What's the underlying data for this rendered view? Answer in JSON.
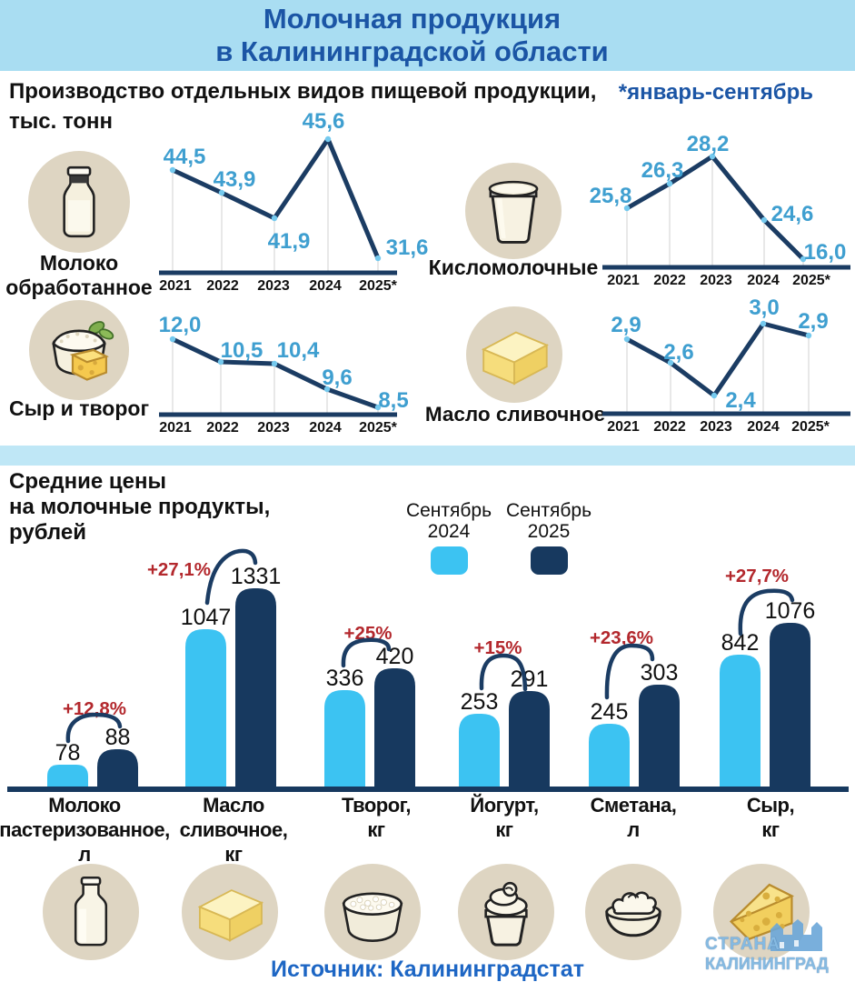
{
  "header": {
    "title": "Молочная продукция\nв Калининградской области"
  },
  "production": {
    "title": "Производство отдельных видов пищевой продукции,\nтыс. тонн",
    "note": "*январь-сентябрь"
  },
  "prices": {
    "title": "Средние цены\nна молочные продукты,\nрублей",
    "legend": [
      {
        "label": "Сентябрь\n2024",
        "color": "#3cc3f2"
      },
      {
        "label": "Сентябрь\n2025",
        "color": "#17395f"
      }
    ]
  },
  "source": "Источник: Калининградстат",
  "watermark": {
    "line1": "СТРАНА",
    "line2": "КАЛИНИНГРАД"
  },
  "colors": {
    "header_bg": "#a9ddf2",
    "header_text": "#1b55a5",
    "line": "#1b3c63",
    "marker": "#74c9ee",
    "value_label": "#3f9fd0",
    "bar_2024": "#3cc3f2",
    "bar_2025": "#17395f",
    "pct_red": "#b3282d",
    "icon_bg": "#ded5c2",
    "source_text": "#1d66c4"
  },
  "chart_data": [
    {
      "type": "line",
      "title": "Молоко обработанное",
      "icon": "milk-bottle-icon",
      "x": [
        "2021",
        "2022",
        "2023",
        "2024",
        "2025*"
      ],
      "values": [
        44.5,
        43.9,
        41.9,
        45.6,
        31.6
      ],
      "value_labels": [
        "44,5",
        "43,9",
        "41,9",
        "45,6",
        "31,6"
      ]
    },
    {
      "type": "line",
      "title": "Кисломолочные",
      "icon": "kefir-cup-icon",
      "x": [
        "2021",
        "2022",
        "2023",
        "2024",
        "2025*"
      ],
      "values": [
        25.8,
        26.3,
        28.2,
        24.6,
        16.0
      ],
      "value_labels": [
        "25,8",
        "26,3",
        "28,2",
        "24,6",
        "16,0"
      ]
    },
    {
      "type": "line",
      "title": "Сыр и творог",
      "icon": "curd-cheese-icon",
      "x": [
        "2021",
        "2022",
        "2023",
        "2024",
        "2025*"
      ],
      "values": [
        12.0,
        10.5,
        10.4,
        9.6,
        8.5
      ],
      "value_labels": [
        "12,0",
        "10,5",
        "10,4",
        "9,6",
        "8,5"
      ]
    },
    {
      "type": "line",
      "title": "Масло сливочное",
      "icon": "butter-icon",
      "x": [
        "2021",
        "2022",
        "2023",
        "2024",
        "2025*"
      ],
      "values": [
        2.9,
        2.6,
        2.4,
        3.0,
        2.9
      ],
      "value_labels": [
        "2,9",
        "2,6",
        "2,4",
        "3,0",
        "2,9"
      ]
    },
    {
      "type": "bar",
      "title": "Средние цены на молочные продукты, рублей",
      "categories": [
        "Молоко\nпастеризованное,\nл",
        "Масло\nсливочное,\nкг",
        "Творог,\nкг",
        "Йогурт,\nкг",
        "Сметана,\nл",
        "Сыр,\nкг"
      ],
      "series": [
        {
          "name": "Сентябрь 2024",
          "values": [
            78,
            1047,
            336,
            253,
            245,
            842
          ],
          "value_labels": [
            "78",
            "1047",
            "336",
            "253",
            "245",
            "842"
          ]
        },
        {
          "name": "Сентябрь 2025",
          "values": [
            88,
            1331,
            420,
            291,
            303,
            1076
          ],
          "value_labels": [
            "88",
            "1331",
            "420",
            "291",
            "303",
            "1076"
          ]
        }
      ],
      "pct_change": [
        "+12,8%",
        "+27,1%",
        "+25%",
        "+15%",
        "+23,6%",
        "+27,7%"
      ],
      "icons": [
        "milk-bottle-icon",
        "butter-icon",
        "cottage-cheese-icon",
        "yogurt-icon",
        "sour-cream-icon",
        "cheese-icon"
      ]
    }
  ]
}
